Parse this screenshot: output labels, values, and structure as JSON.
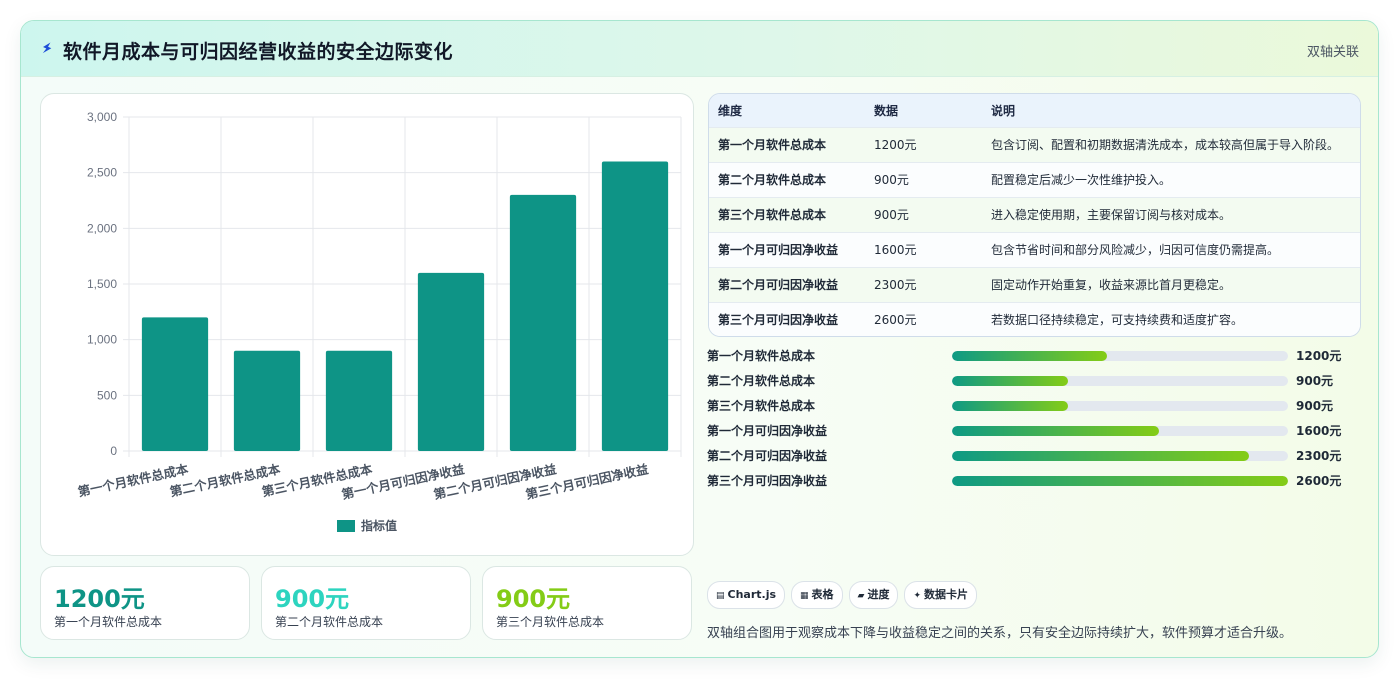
{
  "header": {
    "title": "软件月成本与可归因经营收益的安全边际变化",
    "tag": "双轴关联",
    "icon": "lightning-icon"
  },
  "chart_data": {
    "type": "bar",
    "categories": [
      "第一个月软件总成本",
      "第二个月软件总成本",
      "第三个月软件总成本",
      "第一个月可归因净收益",
      "第二个月可归因净收益",
      "第三个月可归因净收益"
    ],
    "series": [
      {
        "name": "指标值",
        "values": [
          1200,
          900,
          900,
          1600,
          2300,
          2600
        ]
      }
    ],
    "ylim": [
      0,
      3000
    ],
    "yticks": [
      "3,000",
      "2,500",
      "2,000",
      "1,500",
      "1,000",
      "500",
      "0"
    ],
    "legend": "bottom",
    "grid": true,
    "color": "#0e9486"
  },
  "kpis": [
    {
      "value": "1200元",
      "label": "第一个月软件总成本",
      "color": "#0e9486"
    },
    {
      "value": "900元",
      "label": "第二个月软件总成本",
      "color": "#2dd4bf"
    },
    {
      "value": "900元",
      "label": "第三个月软件总成本",
      "color": "#84cc16"
    }
  ],
  "table": {
    "headers": [
      "维度",
      "数据",
      "说明"
    ],
    "rows": [
      [
        "第一个月软件总成本",
        "1200元",
        "包含订阅、配置和初期数据清洗成本，成本较高但属于导入阶段。"
      ],
      [
        "第二个月软件总成本",
        "900元",
        "配置稳定后减少一次性维护投入。"
      ],
      [
        "第三个月软件总成本",
        "900元",
        "进入稳定使用期，主要保留订阅与核对成本。"
      ],
      [
        "第一个月可归因净收益",
        "1600元",
        "包含节省时间和部分风险减少，归因可信度仍需提高。"
      ],
      [
        "第二个月可归因净收益",
        "2300元",
        "固定动作开始重复，收益来源比首月更稳定。"
      ],
      [
        "第三个月可归因净收益",
        "2600元",
        "若数据口径持续稳定，可支持续费和适度扩容。"
      ]
    ]
  },
  "progress": [
    {
      "label": "第一个月软件总成本",
      "value": "1200元",
      "fraction": 0.4615
    },
    {
      "label": "第二个月软件总成本",
      "value": "900元",
      "fraction": 0.3462
    },
    {
      "label": "第三个月软件总成本",
      "value": "900元",
      "fraction": 0.3462
    },
    {
      "label": "第一个月可归因净收益",
      "value": "1600元",
      "fraction": 0.6154
    },
    {
      "label": "第二个月可归因净收益",
      "value": "2300元",
      "fraction": 0.8846
    },
    {
      "label": "第三个月可归因净收益",
      "value": "2600元",
      "fraction": 1.0
    }
  ],
  "chips": [
    {
      "icon": "▤",
      "label": "Chart.js"
    },
    {
      "icon": "▦",
      "label": "表格"
    },
    {
      "icon": "▰",
      "label": "进度"
    },
    {
      "icon": "✦",
      "label": "数据卡片"
    }
  ],
  "footnote": "双轴组合图用于观察成本下降与收益稳定之间的关系，只有安全边际持续扩大，软件预算才适合升级。"
}
